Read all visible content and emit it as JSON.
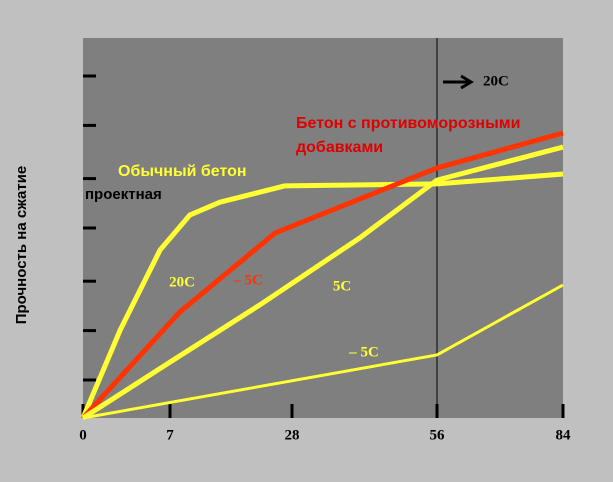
{
  "chart_data": {
    "type": "line",
    "y_label": "Прочность на сжатие",
    "xticks": [
      0,
      7,
      28,
      56,
      84
    ],
    "xlim": [
      0,
      84
    ],
    "ylim": [
      0,
      100
    ],
    "yticks": [
      10,
      23,
      36,
      50,
      63,
      77,
      90
    ],
    "vline": 56,
    "series": [
      {
        "name": "20C",
        "color": "#ffff33",
        "x": [
          0,
          3,
          6.2,
          10.4,
          15.6,
          26.8,
          56,
          84
        ],
        "values": [
          0,
          23.2,
          44.2,
          53.4,
          56.8,
          61.1,
          61.6,
          64.2
        ]
      },
      {
        "name": "– 5C",
        "color": "#ff3300",
        "x": [
          0,
          8.7,
          25.1,
          56,
          84
        ],
        "values": [
          0,
          27.9,
          48.7,
          65.8,
          75
        ]
      },
      {
        "name": "5C",
        "color": "#ffff33",
        "x": [
          0,
          7,
          22.4,
          41.1,
          56,
          84
        ],
        "values": [
          0,
          14.7,
          29.7,
          47.4,
          62.6,
          71.3
        ]
      },
      {
        "name": "– 5C",
        "color": "#ffff33",
        "x": [
          0,
          56,
          84
        ],
        "values": [
          0,
          16.6,
          35
        ]
      }
    ],
    "annotations": {
      "ordinary": "Обычный бетон",
      "antifreeze": [
        "Бетон с противоморозными",
        "добавками"
      ],
      "design": "проектная",
      "after": "20C"
    }
  }
}
